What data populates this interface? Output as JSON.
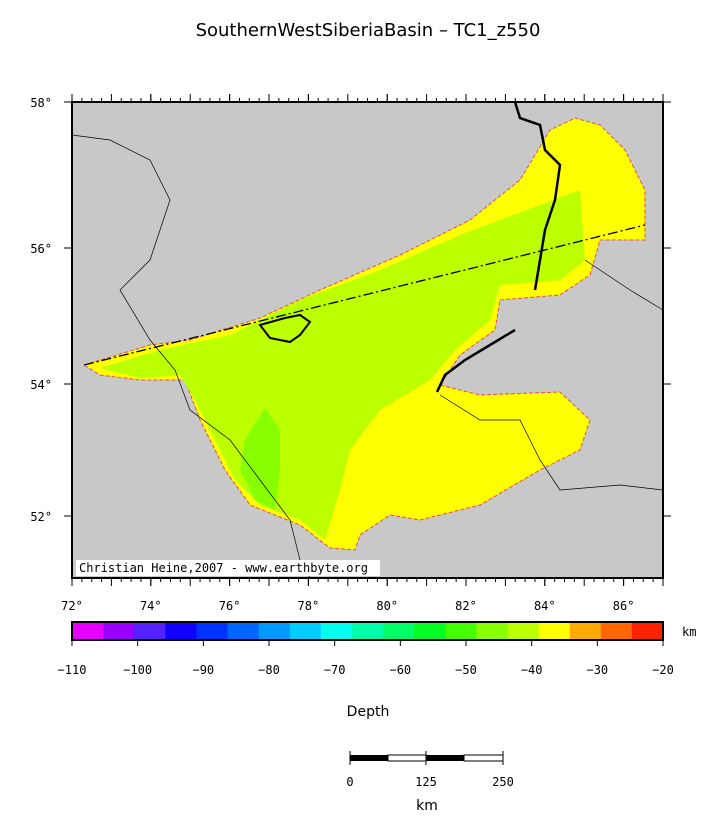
{
  "title": "SouthernWestSiberiaBasin – TC1_z550",
  "map": {
    "xticks": [
      "72°",
      "74°",
      "76°",
      "78°",
      "80°",
      "82°",
      "84°",
      "86°"
    ],
    "yticks": [
      "58°",
      "56°",
      "54°",
      "52°"
    ],
    "credit": "Christian Heine,2007 - www.earthbyte.org"
  },
  "colorbar": {
    "unit": "km",
    "label": "Depth",
    "ticks": [
      "−110",
      "−100",
      "−90",
      "−80",
      "−70",
      "−60",
      "−50",
      "−40",
      "−30",
      "−20"
    ],
    "colors": [
      "#e600ff",
      "#9900ff",
      "#5522ff",
      "#1100ff",
      "#0033ff",
      "#0066ff",
      "#0099ff",
      "#00ccff",
      "#00ffee",
      "#00ffaa",
      "#00ff66",
      "#00ff22",
      "#44ff00",
      "#88ff00",
      "#bbff00",
      "#ffff00",
      "#ffaa00",
      "#ff6600",
      "#ff2200"
    ]
  },
  "scalebar": {
    "ticks": [
      "0",
      "125",
      "250"
    ],
    "unit": "km"
  }
}
